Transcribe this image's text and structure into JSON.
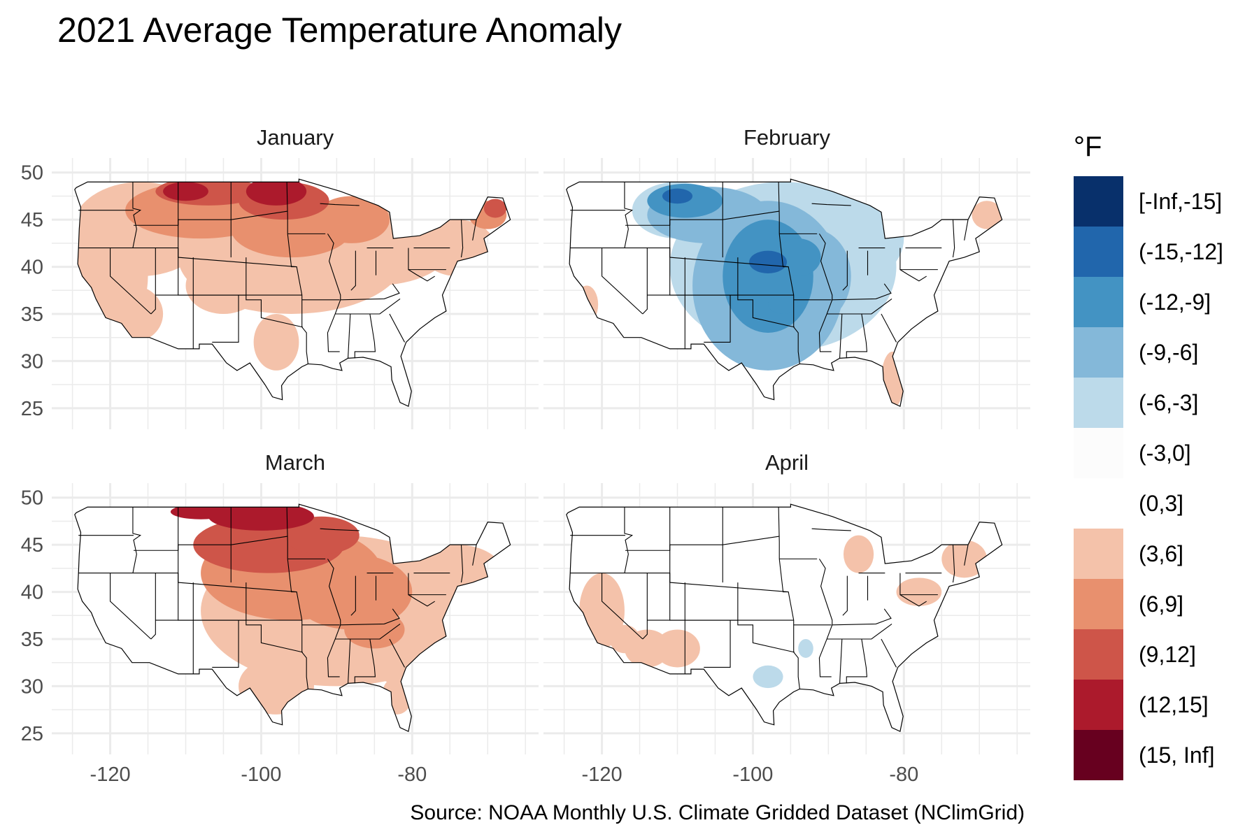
{
  "title": "2021 Average Temperature Anomaly",
  "caption": "Source: NOAA Monthly U.S. Climate Gridded Dataset (NClimGrid)",
  "legend": {
    "title": "°F",
    "bins": [
      {
        "label": "[-Inf,-15]",
        "color": "#08306b"
      },
      {
        "label": "(-15,-12]",
        "color": "#2166ac"
      },
      {
        "label": "(-12,-9]",
        "color": "#4393c3"
      },
      {
        "label": "(-9,-6]",
        "color": "#84b8d9"
      },
      {
        "label": "(-6,-3]",
        "color": "#bcdaea"
      },
      {
        "label": "(-3,0]",
        "color": "#fcfcfc"
      },
      {
        "label": "(0,3]",
        "color": "#ffffff"
      },
      {
        "label": "(3,6]",
        "color": "#f4c2aa"
      },
      {
        "label": "(6,9]",
        "color": "#e8906e"
      },
      {
        "label": "(9,12]",
        "color": "#ce5549"
      },
      {
        "label": "(12,15]",
        "color": "#ac1a2c"
      },
      {
        "label": "(15, Inf]",
        "color": "#67001f"
      }
    ]
  },
  "axes": {
    "x_ticks": [
      -120,
      -100,
      -80
    ],
    "y_ticks": [
      50,
      45,
      40,
      35,
      30,
      25
    ],
    "xlim": [
      -127,
      -64
    ],
    "ylim": [
      23.8,
      50.5
    ]
  },
  "chart_data": {
    "type": "heatmap",
    "panels": [
      {
        "month": "January",
        "anomaly_regions": [
          {
            "region": "northern plains (ND, SD, MN)",
            "bin": "(12,15]"
          },
          {
            "region": "northern Rockies / upper Midwest",
            "bin": "(9,12]"
          },
          {
            "region": "Maine",
            "bin": "(9,12]"
          },
          {
            "region": "central plains / Great Lakes",
            "bin": "(6,9]"
          },
          {
            "region": "West coast / Northeast",
            "bin": "(3,6]"
          },
          {
            "region": "Southwest / Southeast / Texas",
            "bin": "(0,3]"
          }
        ]
      },
      {
        "month": "February",
        "anomaly_regions": [
          {
            "region": "Kansas / Nebraska / Oklahoma core",
            "bin": "(-15,-12]"
          },
          {
            "region": "Great Plains / Montana",
            "bin": "(-12,-9]"
          },
          {
            "region": "Mississippi valley / Texas",
            "bin": "(-9,-6]"
          },
          {
            "region": "Great Lakes / Ohio valley",
            "bin": "(-6,-3]"
          },
          {
            "region": "West / Northeast",
            "bin": "(-3,0]"
          },
          {
            "region": "Florida / California coast",
            "bin": "(3,6]"
          }
        ]
      },
      {
        "month": "March",
        "anomaly_regions": [
          {
            "region": "northern plains (ND, MN)",
            "bin": "(12,15]"
          },
          {
            "region": "upper Midwest",
            "bin": "(9,12]"
          },
          {
            "region": "Midwest / central plains",
            "bin": "(6,9]"
          },
          {
            "region": "South / East",
            "bin": "(3,6]"
          },
          {
            "region": "West",
            "bin": "(0,3]"
          }
        ]
      },
      {
        "month": "April",
        "anomaly_regions": [
          {
            "region": "California / Arizona",
            "bin": "(3,6]"
          },
          {
            "region": "New England / Great Lakes",
            "bin": "(3,6]"
          },
          {
            "region": "central Texas",
            "bin": "(-6,-3]"
          },
          {
            "region": "rest of CONUS",
            "bin": "(-3,0]"
          }
        ]
      }
    ]
  }
}
